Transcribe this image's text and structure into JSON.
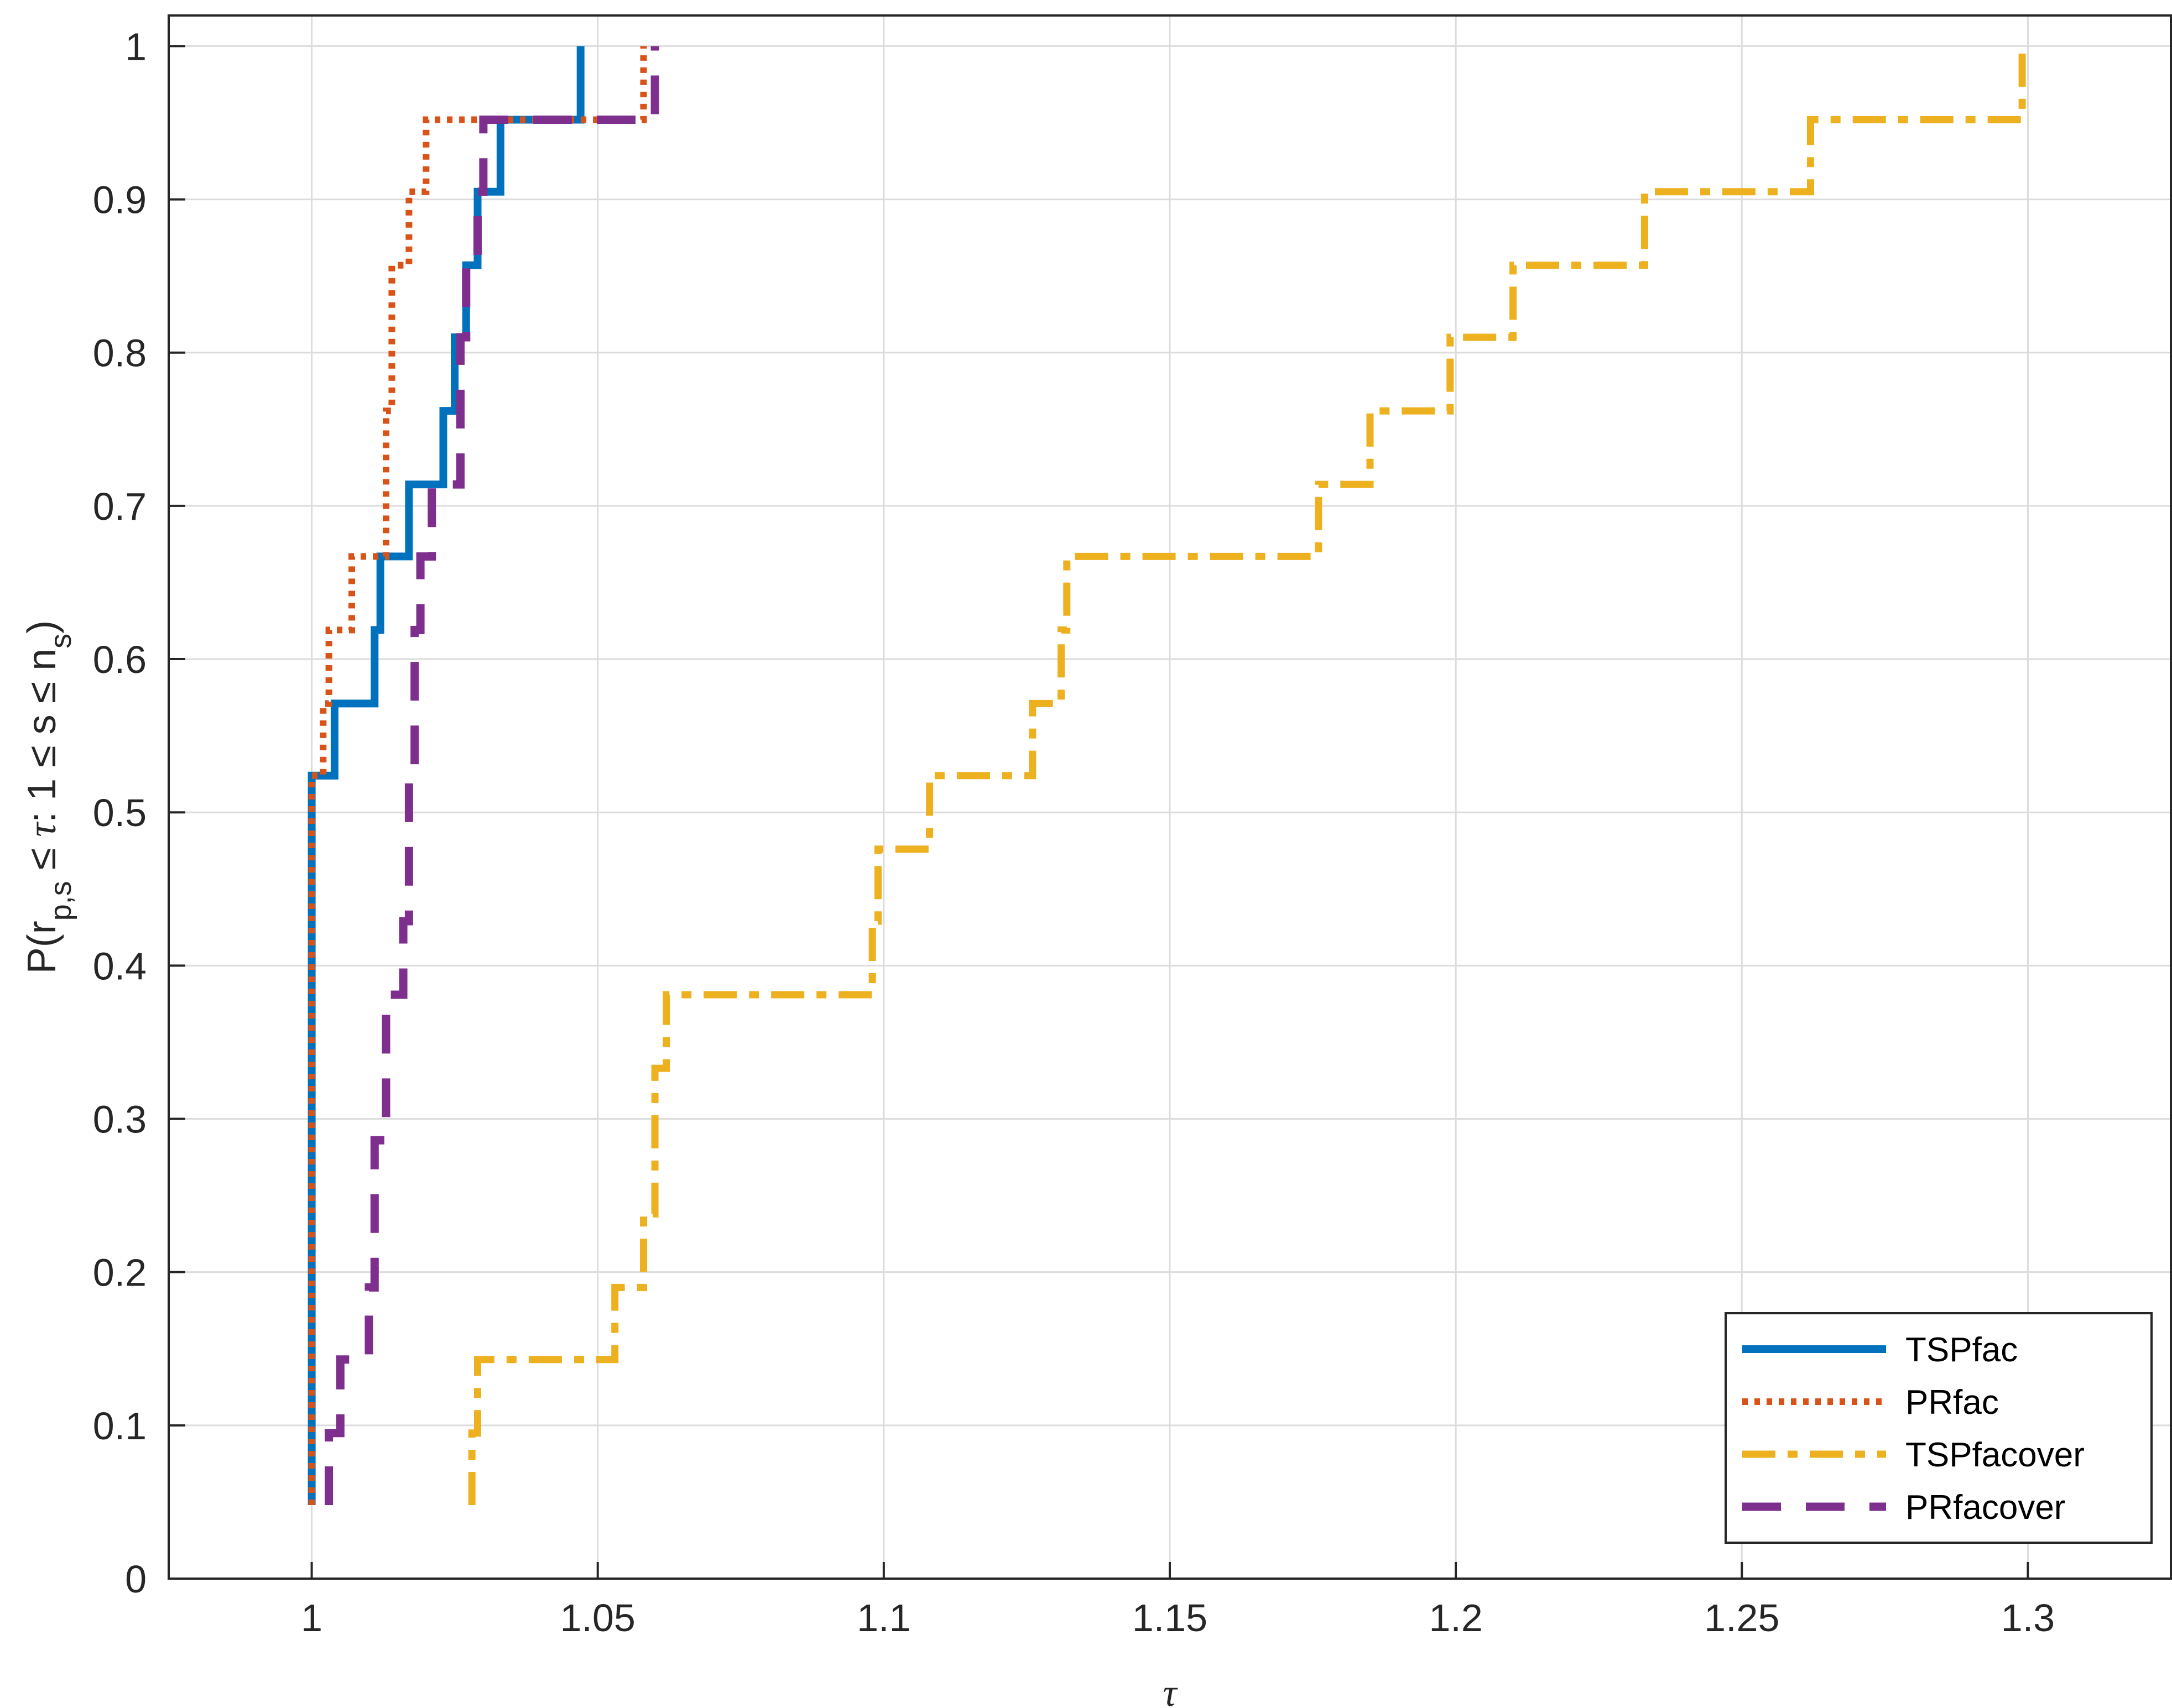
{
  "chart_data": {
    "type": "line",
    "subtype": "step",
    "xlabel": "τ",
    "ylabel_parts": {
      "prefix": "P(r",
      "sub1": "p,s",
      "middle1": " ≤ ",
      "tau": "τ",
      "middle2": ": 1 ≤ s ≤ n",
      "sub2": "s",
      "suffix": ")"
    },
    "xlim": [
      0.975,
      1.325
    ],
    "ylim": [
      0,
      1.02
    ],
    "xticks": [
      1,
      1.05,
      1.1,
      1.15,
      1.2,
      1.25,
      1.3
    ],
    "xtick_labels": [
      "1",
      "1.05",
      "1.1",
      "1.15",
      "1.2",
      "1.25",
      "1.3"
    ],
    "yticks": [
      0,
      0.1,
      0.2,
      0.3,
      0.4,
      0.5,
      0.6,
      0.7,
      0.8,
      0.9,
      1
    ],
    "ytick_labels": [
      "0",
      "0.1",
      "0.2",
      "0.3",
      "0.4",
      "0.5",
      "0.6",
      "0.7",
      "0.8",
      "0.9",
      "1"
    ],
    "grid": true,
    "legend_position": "bottom-right",
    "series": [
      {
        "name": "TSPfac",
        "color": "#0072BD",
        "linestyle": "solid",
        "points": [
          [
            1.0,
            0.048
          ],
          [
            1.0,
            0.524
          ],
          [
            1.004,
            0.524
          ],
          [
            1.004,
            0.571
          ],
          [
            1.011,
            0.571
          ],
          [
            1.011,
            0.619
          ],
          [
            1.012,
            0.619
          ],
          [
            1.012,
            0.667
          ],
          [
            1.017,
            0.667
          ],
          [
            1.017,
            0.714
          ],
          [
            1.023,
            0.714
          ],
          [
            1.023,
            0.762
          ],
          [
            1.025,
            0.762
          ],
          [
            1.025,
            0.81
          ],
          [
            1.027,
            0.81
          ],
          [
            1.027,
            0.857
          ],
          [
            1.029,
            0.857
          ],
          [
            1.029,
            0.905
          ],
          [
            1.033,
            0.905
          ],
          [
            1.033,
            0.952
          ],
          [
            1.047,
            0.952
          ],
          [
            1.047,
            1.0
          ]
        ]
      },
      {
        "name": "PRfac",
        "color": "#D95319",
        "linestyle": "dotted",
        "points": [
          [
            1.0,
            0.048
          ],
          [
            1.0,
            0.524
          ],
          [
            1.002,
            0.524
          ],
          [
            1.002,
            0.571
          ],
          [
            1.003,
            0.571
          ],
          [
            1.003,
            0.619
          ],
          [
            1.007,
            0.619
          ],
          [
            1.007,
            0.667
          ],
          [
            1.013,
            0.667
          ],
          [
            1.013,
            0.714
          ],
          [
            1.013,
            0.714
          ],
          [
            1.013,
            0.762
          ],
          [
            1.014,
            0.762
          ],
          [
            1.014,
            0.857
          ],
          [
            1.017,
            0.857
          ],
          [
            1.017,
            0.905
          ],
          [
            1.02,
            0.905
          ],
          [
            1.02,
            0.952
          ],
          [
            1.058,
            0.952
          ],
          [
            1.058,
            1.0
          ]
        ]
      },
      {
        "name": "TSPfacover",
        "color": "#EDB120",
        "linestyle": "dashdot",
        "points": [
          [
            1.028,
            0.048
          ],
          [
            1.028,
            0.095
          ],
          [
            1.029,
            0.095
          ],
          [
            1.029,
            0.143
          ],
          [
            1.053,
            0.143
          ],
          [
            1.053,
            0.19
          ],
          [
            1.058,
            0.19
          ],
          [
            1.058,
            0.238
          ],
          [
            1.06,
            0.238
          ],
          [
            1.06,
            0.333
          ],
          [
            1.062,
            0.333
          ],
          [
            1.062,
            0.381
          ],
          [
            1.098,
            0.381
          ],
          [
            1.098,
            0.429
          ],
          [
            1.099,
            0.429
          ],
          [
            1.099,
            0.476
          ],
          [
            1.108,
            0.476
          ],
          [
            1.108,
            0.524
          ],
          [
            1.126,
            0.524
          ],
          [
            1.126,
            0.571
          ],
          [
            1.131,
            0.571
          ],
          [
            1.131,
            0.619
          ],
          [
            1.132,
            0.619
          ],
          [
            1.132,
            0.667
          ],
          [
            1.176,
            0.667
          ],
          [
            1.176,
            0.714
          ],
          [
            1.185,
            0.714
          ],
          [
            1.185,
            0.762
          ],
          [
            1.199,
            0.762
          ],
          [
            1.199,
            0.81
          ],
          [
            1.21,
            0.81
          ],
          [
            1.21,
            0.857
          ],
          [
            1.233,
            0.857
          ],
          [
            1.233,
            0.905
          ],
          [
            1.262,
            0.905
          ],
          [
            1.262,
            0.952
          ],
          [
            1.299,
            0.952
          ],
          [
            1.299,
            1.0
          ]
        ]
      },
      {
        "name": "PRfacover",
        "color": "#7E2F8E",
        "linestyle": "dashed",
        "points": [
          [
            1.003,
            0.048
          ],
          [
            1.003,
            0.095
          ],
          [
            1.005,
            0.095
          ],
          [
            1.005,
            0.143
          ],
          [
            1.01,
            0.143
          ],
          [
            1.01,
            0.19
          ],
          [
            1.011,
            0.19
          ],
          [
            1.011,
            0.286
          ],
          [
            1.013,
            0.286
          ],
          [
            1.013,
            0.381
          ],
          [
            1.016,
            0.381
          ],
          [
            1.016,
            0.429
          ],
          [
            1.017,
            0.429
          ],
          [
            1.017,
            0.524
          ],
          [
            1.018,
            0.524
          ],
          [
            1.018,
            0.619
          ],
          [
            1.019,
            0.619
          ],
          [
            1.019,
            0.667
          ],
          [
            1.021,
            0.667
          ],
          [
            1.021,
            0.714
          ],
          [
            1.026,
            0.714
          ],
          [
            1.026,
            0.762
          ],
          [
            1.026,
            0.762
          ],
          [
            1.026,
            0.81
          ],
          [
            1.027,
            0.81
          ],
          [
            1.027,
            0.857
          ],
          [
            1.029,
            0.857
          ],
          [
            1.029,
            0.905
          ],
          [
            1.03,
            0.905
          ],
          [
            1.03,
            0.952
          ],
          [
            1.06,
            0.952
          ],
          [
            1.06,
            1.0
          ]
        ]
      }
    ]
  }
}
